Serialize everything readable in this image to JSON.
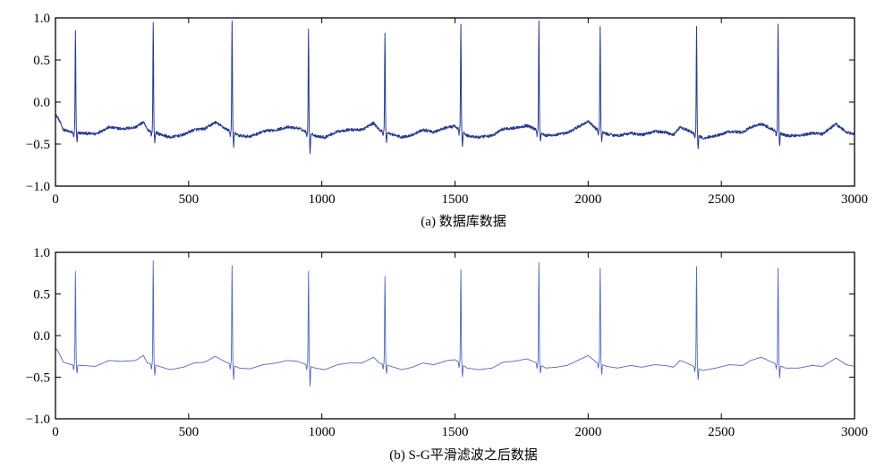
{
  "colors": {
    "raw": "#283a8c",
    "filtered": "#5068b8",
    "axis": "#000000"
  },
  "chart_data": [
    {
      "type": "line",
      "caption": "(a) 数据库数据",
      "title": "",
      "xlabel": "",
      "ylabel": "",
      "xlim": [
        0,
        3000
      ],
      "ylim": [
        -1.0,
        1.0
      ],
      "xticks": [
        0,
        500,
        1000,
        1500,
        2000,
        2500,
        3000
      ],
      "xtick_labels": [
        "0",
        "500",
        "1000",
        "1500",
        "2000",
        "2500",
        "3000"
      ],
      "yticks": [
        -1.0,
        -0.5,
        0.0,
        0.5,
        1.0
      ],
      "ytick_labels": [
        "−1.0",
        "−0.5",
        "0.0",
        "0.5",
        "1.0"
      ],
      "grid": false,
      "noisy": true,
      "series": [
        {
          "color": "#283a8c",
          "r_peaks": [
            {
              "x": 75,
              "peak": 0.86,
              "trough": -0.48
            },
            {
              "x": 367,
              "peak": 0.96,
              "trough": -0.47
            },
            {
              "x": 663,
              "peak": 0.98,
              "trough": -0.52
            },
            {
              "x": 950,
              "peak": 0.86,
              "trough": -0.62
            },
            {
              "x": 1237,
              "peak": 0.83,
              "trough": -0.48
            },
            {
              "x": 1522,
              "peak": 0.92,
              "trough": -0.5
            },
            {
              "x": 1815,
              "peak": 0.96,
              "trough": -0.46
            },
            {
              "x": 2045,
              "peak": 0.89,
              "trough": -0.47
            },
            {
              "x": 2407,
              "peak": 0.9,
              "trough": -0.54
            },
            {
              "x": 2713,
              "peak": 0.91,
              "trough": -0.52
            }
          ],
          "baseline": [
            [
              0,
              -0.15
            ],
            [
              10,
              -0.19
            ],
            [
              30,
              -0.33
            ],
            [
              60,
              -0.36
            ],
            [
              100,
              -0.37
            ],
            [
              150,
              -0.38
            ],
            [
              200,
              -0.3
            ],
            [
              250,
              -0.32
            ],
            [
              300,
              -0.3
            ],
            [
              330,
              -0.24
            ],
            [
              345,
              -0.33
            ],
            [
              390,
              -0.38
            ],
            [
              430,
              -0.42
            ],
            [
              480,
              -0.39
            ],
            [
              520,
              -0.33
            ],
            [
              560,
              -0.32
            ],
            [
              600,
              -0.24
            ],
            [
              640,
              -0.32
            ],
            [
              690,
              -0.4
            ],
            [
              730,
              -0.41
            ],
            [
              780,
              -0.35
            ],
            [
              830,
              -0.33
            ],
            [
              870,
              -0.3
            ],
            [
              910,
              -0.31
            ],
            [
              975,
              -0.4
            ],
            [
              1010,
              -0.42
            ],
            [
              1060,
              -0.35
            ],
            [
              1100,
              -0.33
            ],
            [
              1150,
              -0.33
            ],
            [
              1195,
              -0.25
            ],
            [
              1215,
              -0.33
            ],
            [
              1260,
              -0.38
            ],
            [
              1300,
              -0.42
            ],
            [
              1340,
              -0.39
            ],
            [
              1380,
              -0.33
            ],
            [
              1420,
              -0.36
            ],
            [
              1470,
              -0.3
            ],
            [
              1500,
              -0.29
            ],
            [
              1545,
              -0.4
            ],
            [
              1590,
              -0.42
            ],
            [
              1640,
              -0.4
            ],
            [
              1680,
              -0.32
            ],
            [
              1720,
              -0.31
            ],
            [
              1770,
              -0.28
            ],
            [
              1800,
              -0.32
            ],
            [
              1840,
              -0.4
            ],
            [
              1880,
              -0.39
            ],
            [
              1920,
              -0.37
            ],
            [
              1960,
              -0.3
            ],
            [
              2000,
              -0.23
            ],
            [
              2030,
              -0.32
            ],
            [
              2070,
              -0.38
            ],
            [
              2110,
              -0.4
            ],
            [
              2160,
              -0.37
            ],
            [
              2200,
              -0.39
            ],
            [
              2250,
              -0.35
            ],
            [
              2290,
              -0.36
            ],
            [
              2320,
              -0.39
            ],
            [
              2345,
              -0.3
            ],
            [
              2370,
              -0.33
            ],
            [
              2430,
              -0.43
            ],
            [
              2480,
              -0.4
            ],
            [
              2530,
              -0.35
            ],
            [
              2580,
              -0.36
            ],
            [
              2610,
              -0.3
            ],
            [
              2650,
              -0.26
            ],
            [
              2690,
              -0.32
            ],
            [
              2740,
              -0.4
            ],
            [
              2790,
              -0.4
            ],
            [
              2840,
              -0.37
            ],
            [
              2880,
              -0.38
            ],
            [
              2930,
              -0.26
            ],
            [
              2970,
              -0.36
            ],
            [
              3000,
              -0.38
            ]
          ]
        }
      ]
    },
    {
      "type": "line",
      "caption": "(b) S-G平滑滤波之后数据",
      "title": "",
      "xlabel": "",
      "ylabel": "",
      "xlim": [
        0,
        3000
      ],
      "ylim": [
        -1.0,
        1.0
      ],
      "xticks": [
        0,
        500,
        1000,
        1500,
        2000,
        2500,
        3000
      ],
      "xtick_labels": [
        "0",
        "500",
        "1000",
        "1500",
        "2000",
        "2500",
        "3000"
      ],
      "yticks": [
        -1.0,
        -0.5,
        0.0,
        0.5,
        1.0
      ],
      "ytick_labels": [
        "−1.0",
        "−0.5",
        "0.0",
        "0.5",
        "1.0"
      ],
      "grid": false,
      "noisy": false,
      "series": [
        {
          "color": "#5068b8",
          "r_peaks": [
            {
              "x": 75,
              "peak": 0.77,
              "trough": -0.45
            },
            {
              "x": 367,
              "peak": 0.9,
              "trough": -0.47
            },
            {
              "x": 663,
              "peak": 0.84,
              "trough": -0.52
            },
            {
              "x": 950,
              "peak": 0.77,
              "trough": -0.6
            },
            {
              "x": 1237,
              "peak": 0.71,
              "trough": -0.45
            },
            {
              "x": 1522,
              "peak": 0.79,
              "trough": -0.48
            },
            {
              "x": 1815,
              "peak": 0.88,
              "trough": -0.44
            },
            {
              "x": 2045,
              "peak": 0.81,
              "trough": -0.46
            },
            {
              "x": 2407,
              "peak": 0.83,
              "trough": -0.52
            },
            {
              "x": 2713,
              "peak": 0.81,
              "trough": -0.5
            }
          ],
          "baseline": [
            [
              0,
              -0.15
            ],
            [
              10,
              -0.19
            ],
            [
              30,
              -0.32
            ],
            [
              60,
              -0.35
            ],
            [
              100,
              -0.36
            ],
            [
              150,
              -0.37
            ],
            [
              200,
              -0.3
            ],
            [
              250,
              -0.31
            ],
            [
              300,
              -0.3
            ],
            [
              330,
              -0.24
            ],
            [
              345,
              -0.33
            ],
            [
              390,
              -0.37
            ],
            [
              430,
              -0.41
            ],
            [
              480,
              -0.38
            ],
            [
              520,
              -0.33
            ],
            [
              560,
              -0.32
            ],
            [
              600,
              -0.25
            ],
            [
              640,
              -0.32
            ],
            [
              690,
              -0.39
            ],
            [
              730,
              -0.4
            ],
            [
              780,
              -0.35
            ],
            [
              830,
              -0.33
            ],
            [
              870,
              -0.3
            ],
            [
              910,
              -0.31
            ],
            [
              975,
              -0.39
            ],
            [
              1010,
              -0.41
            ],
            [
              1060,
              -0.35
            ],
            [
              1100,
              -0.33
            ],
            [
              1150,
              -0.33
            ],
            [
              1195,
              -0.26
            ],
            [
              1215,
              -0.33
            ],
            [
              1260,
              -0.37
            ],
            [
              1300,
              -0.41
            ],
            [
              1340,
              -0.38
            ],
            [
              1380,
              -0.33
            ],
            [
              1420,
              -0.35
            ],
            [
              1470,
              -0.3
            ],
            [
              1500,
              -0.29
            ],
            [
              1545,
              -0.39
            ],
            [
              1590,
              -0.41
            ],
            [
              1640,
              -0.39
            ],
            [
              1680,
              -0.32
            ],
            [
              1720,
              -0.31
            ],
            [
              1770,
              -0.28
            ],
            [
              1800,
              -0.32
            ],
            [
              1840,
              -0.39
            ],
            [
              1880,
              -0.38
            ],
            [
              1920,
              -0.36
            ],
            [
              1960,
              -0.3
            ],
            [
              2000,
              -0.24
            ],
            [
              2030,
              -0.32
            ],
            [
              2070,
              -0.37
            ],
            [
              2110,
              -0.39
            ],
            [
              2160,
              -0.36
            ],
            [
              2200,
              -0.38
            ],
            [
              2250,
              -0.35
            ],
            [
              2290,
              -0.36
            ],
            [
              2320,
              -0.38
            ],
            [
              2345,
              -0.3
            ],
            [
              2370,
              -0.33
            ],
            [
              2430,
              -0.42
            ],
            [
              2480,
              -0.39
            ],
            [
              2530,
              -0.35
            ],
            [
              2580,
              -0.36
            ],
            [
              2610,
              -0.3
            ],
            [
              2650,
              -0.26
            ],
            [
              2690,
              -0.32
            ],
            [
              2740,
              -0.39
            ],
            [
              2790,
              -0.39
            ],
            [
              2840,
              -0.36
            ],
            [
              2880,
              -0.37
            ],
            [
              2930,
              -0.27
            ],
            [
              2970,
              -0.35
            ],
            [
              3000,
              -0.37
            ]
          ]
        }
      ]
    }
  ]
}
